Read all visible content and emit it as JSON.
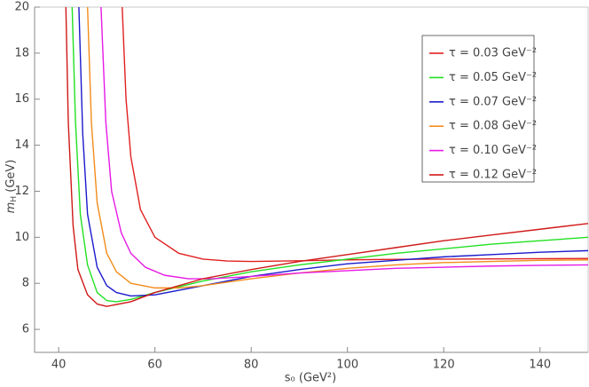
{
  "chart_data": {
    "type": "line",
    "xlabel": "s₀ (GeV²)",
    "ylabel": {
      "symbol": "m",
      "subscript": "H",
      "unit": " (GeV)"
    },
    "xlim": [
      35,
      150
    ],
    "ylim": [
      5,
      20
    ],
    "xticks": [
      40,
      60,
      80,
      100,
      120,
      140
    ],
    "yticks": [
      6,
      8,
      10,
      12,
      14,
      16,
      18,
      20
    ],
    "legend": "top-right",
    "series": [
      {
        "name": "τ = 0.03 GeV⁻²",
        "color": "#e02020",
        "x": [
          53.2,
          54,
          55,
          57,
          60,
          65,
          70,
          75,
          80,
          90,
          100,
          110,
          120,
          130,
          140,
          150
        ],
        "values": [
          20,
          16,
          13.5,
          11.2,
          10.0,
          9.3,
          9.05,
          8.97,
          8.95,
          8.98,
          9.02,
          9.04,
          9.05,
          9.06,
          9.07,
          9.08
        ]
      },
      {
        "name": "τ = 0.05 GeV⁻²",
        "color": "#22e022",
        "x": [
          42.8,
          43.5,
          44.5,
          46,
          48,
          50,
          52,
          55,
          60,
          70,
          80,
          90,
          100,
          110,
          120,
          130,
          140,
          150
        ],
        "values": [
          20,
          15,
          11,
          8.8,
          7.6,
          7.25,
          7.2,
          7.3,
          7.6,
          8.1,
          8.5,
          8.8,
          9.05,
          9.3,
          9.5,
          9.7,
          9.85,
          10.0
        ]
      },
      {
        "name": "τ = 0.07 GeV⁻²",
        "color": "#1a1acc",
        "x": [
          44.2,
          45,
          46,
          48,
          50,
          52,
          55,
          60,
          70,
          80,
          90,
          100,
          110,
          120,
          130,
          140,
          150
        ],
        "values": [
          20,
          14.5,
          11,
          8.7,
          7.9,
          7.6,
          7.45,
          7.5,
          7.9,
          8.3,
          8.6,
          8.85,
          9.0,
          9.15,
          9.25,
          9.35,
          9.42
        ]
      },
      {
        "name": "τ = 0.08 GeV⁻²",
        "color": "#f28c1a",
        "x": [
          46,
          46.8,
          48,
          50,
          52,
          55,
          60,
          65,
          70,
          80,
          90,
          100,
          110,
          120,
          130,
          140,
          150
        ],
        "values": [
          20,
          15,
          11.5,
          9.3,
          8.5,
          8.0,
          7.8,
          7.8,
          7.9,
          8.2,
          8.45,
          8.65,
          8.8,
          8.9,
          8.95,
          9.0,
          9.02
        ]
      },
      {
        "name": "τ = 0.10 GeV⁻²",
        "color": "#e61ae6",
        "x": [
          48.8,
          49.8,
          51,
          53,
          55,
          58,
          62,
          67,
          72,
          80,
          90,
          100,
          110,
          120,
          130,
          140,
          150
        ],
        "values": [
          20,
          15,
          12,
          10.2,
          9.3,
          8.7,
          8.35,
          8.2,
          8.2,
          8.3,
          8.45,
          8.55,
          8.65,
          8.7,
          8.75,
          8.78,
          8.8
        ]
      },
      {
        "name": "τ = 0.12 GeV⁻²",
        "color": "#d01818",
        "x": [
          41.5,
          42,
          43,
          44,
          46,
          48,
          50,
          55,
          60,
          70,
          80,
          90,
          100,
          110,
          120,
          130,
          140,
          150
        ],
        "values": [
          20,
          15,
          10.5,
          8.6,
          7.5,
          7.1,
          7.0,
          7.2,
          7.6,
          8.2,
          8.6,
          8.95,
          9.25,
          9.55,
          9.85,
          10.1,
          10.35,
          10.6
        ]
      }
    ]
  }
}
